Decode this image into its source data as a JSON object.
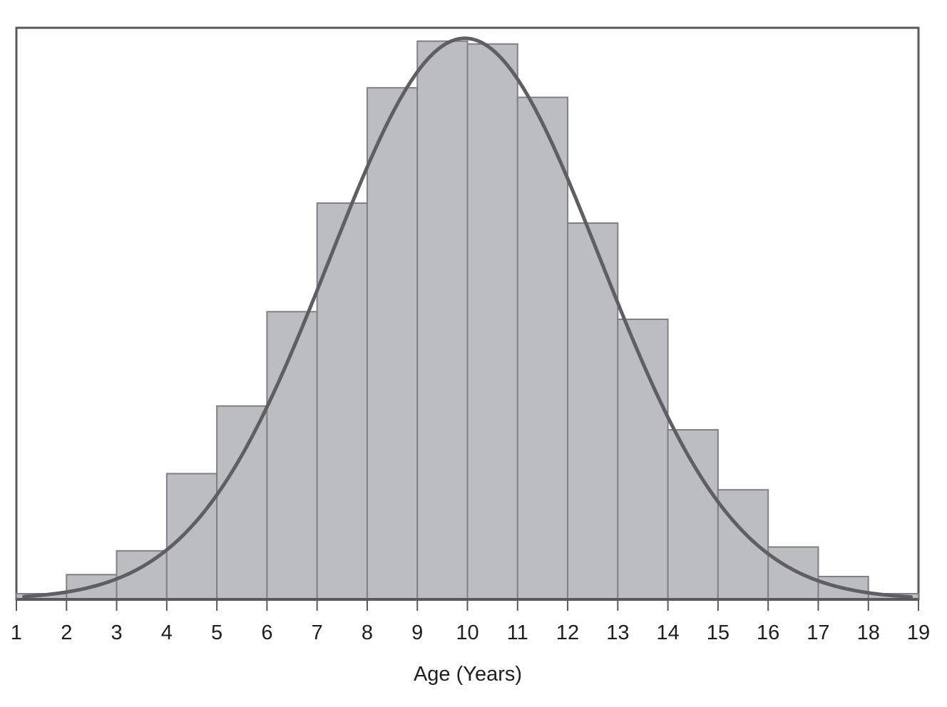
{
  "chart_data": {
    "type": "bar",
    "subtype": "histogram with fitted normal curve",
    "title": "",
    "xlabel": "Age (Years)",
    "ylabel": "",
    "x_ticks": [
      1,
      2,
      3,
      4,
      5,
      6,
      7,
      8,
      9,
      10,
      11,
      12,
      13,
      14,
      15,
      16,
      17,
      18,
      19
    ],
    "bins": [
      {
        "from": 1,
        "to": 2,
        "value": 0.6
      },
      {
        "from": 2,
        "to": 3,
        "value": 2.6
      },
      {
        "from": 3,
        "to": 4,
        "value": 5.1
      },
      {
        "from": 4,
        "to": 5,
        "value": 13.2
      },
      {
        "from": 5,
        "to": 6,
        "value": 20.3
      },
      {
        "from": 6,
        "to": 7,
        "value": 30.2
      },
      {
        "from": 7,
        "to": 8,
        "value": 41.6
      },
      {
        "from": 8,
        "to": 9,
        "value": 53.7
      },
      {
        "from": 9,
        "to": 10,
        "value": 58.6
      },
      {
        "from": 10,
        "to": 11,
        "value": 58.3
      },
      {
        "from": 11,
        "to": 12,
        "value": 52.7
      },
      {
        "from": 12,
        "to": 13,
        "value": 39.5
      },
      {
        "from": 13,
        "to": 14,
        "value": 29.4
      },
      {
        "from": 14,
        "to": 15,
        "value": 17.8
      },
      {
        "from": 15,
        "to": 16,
        "value": 11.5
      },
      {
        "from": 16,
        "to": 17,
        "value": 5.5
      },
      {
        "from": 17,
        "to": 18,
        "value": 2.4
      },
      {
        "from": 18,
        "to": 19,
        "value": 0.6
      }
    ],
    "normal_curve": {
      "mean": 9.95,
      "sd": 2.7,
      "peak": 58.9
    },
    "xlim": [
      1,
      19
    ],
    "ylim": [
      0,
      60
    ],
    "y_axis_ticks_shown": false,
    "grid": false,
    "legend": "none",
    "colors": {
      "bars": "#bcbdc1",
      "bar_edges": "#808084",
      "curve": "#5f5f63",
      "frame": "#5a5a5d"
    }
  }
}
